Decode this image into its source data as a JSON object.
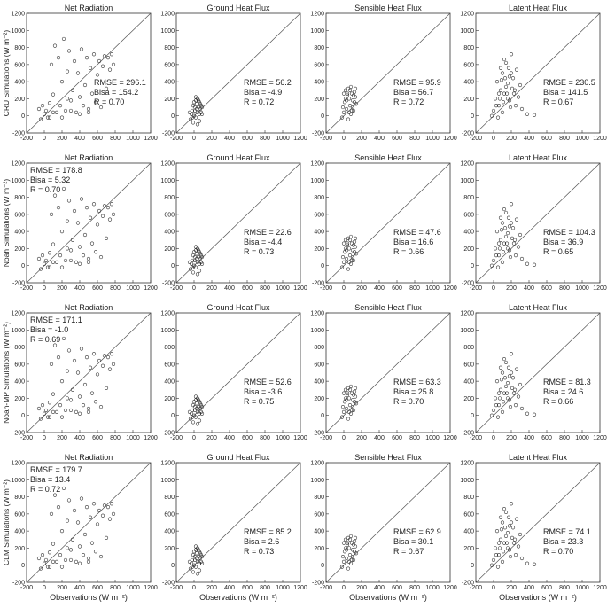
{
  "chart_data": {
    "type": "scatter",
    "axes": {
      "x_ticks": [
        -200,
        0,
        200,
        400,
        600,
        800,
        1000,
        1200
      ],
      "y_ticks": [
        -200,
        0,
        200,
        400,
        600,
        800,
        1000,
        1200
      ],
      "xlim": [
        -200,
        1200
      ],
      "ylim": [
        -200,
        1200
      ],
      "reference_line": "1:1",
      "grid": false
    },
    "xlabel": "Observations (W m⁻²)",
    "columns": [
      "Net Radiation",
      "Ground Heat Flux",
      "Sensible Heat Flux",
      "Latent Heat Flux"
    ],
    "rows": [
      {
        "ylabel": "CRU Simulations (W m⁻²)",
        "panels": [
          {
            "variable": "net",
            "stats": {
              "rmse": "RMSE = 296.1",
              "bias": "Bisa = 154.2",
              "r": "R = 0.70"
            },
            "stats_position": "bottom-right"
          },
          {
            "variable": "ground",
            "stats": {
              "rmse": "RMSE = 56.2",
              "bias": "Bisa = -4.9",
              "r": "R = 0.72"
            },
            "stats_position": "bottom-right"
          },
          {
            "variable": "sensible",
            "stats": {
              "rmse": "RMSE = 95.9",
              "bias": "Bisa = 56.7",
              "r": "R = 0.72"
            },
            "stats_position": "bottom-right"
          },
          {
            "variable": "latent",
            "stats": {
              "rmse": "RMSE = 230.5",
              "bias": "Bisa = 141.5",
              "r": "R = 0.67"
            },
            "stats_position": "bottom-right"
          }
        ]
      },
      {
        "ylabel": "Noah Simulations (W m⁻²)",
        "panels": [
          {
            "variable": "net",
            "stats": {
              "rmse": "RMSE = 178.8",
              "bias": "Bisa = 5.32",
              "r": "R = 0.70"
            },
            "stats_position": "top-left"
          },
          {
            "variable": "ground",
            "stats": {
              "rmse": "RMSE = 22.6",
              "bias": "Bisa = -4.4",
              "r": "R = 0.73"
            },
            "stats_position": "bottom-right"
          },
          {
            "variable": "sensible",
            "stats": {
              "rmse": "RMSE = 47.6",
              "bias": "Bisa = 16.6",
              "r": "R = 0.66"
            },
            "stats_position": "bottom-right"
          },
          {
            "variable": "latent",
            "stats": {
              "rmse": "RMSE = 104.3",
              "bias": "Bisa = 36.9",
              "r": "R = 0.65"
            },
            "stats_position": "bottom-right"
          }
        ]
      },
      {
        "ylabel": "Noah-MP Simulations (W m⁻²)",
        "panels": [
          {
            "variable": "net",
            "stats": {
              "rmse": "RMSE = 171.1",
              "bias": "Bisa = -1.0",
              "r": "R = 0.69"
            },
            "stats_position": "top-left"
          },
          {
            "variable": "ground",
            "stats": {
              "rmse": "RMSE = 52.6",
              "bias": "Bisa = -3.6",
              "r": "R = 0.75"
            },
            "stats_position": "bottom-right"
          },
          {
            "variable": "sensible",
            "stats": {
              "rmse": "RMSE = 63.3",
              "bias": "Bisa = 25.8",
              "r": "R = 0.70"
            },
            "stats_position": "bottom-right"
          },
          {
            "variable": "latent",
            "stats": {
              "rmse": "RMSE = 81.3",
              "bias": "Bisa = 24.6",
              "r": "R = 0.66"
            },
            "stats_position": "bottom-right"
          }
        ]
      },
      {
        "ylabel": "CLM Simulations (W m⁻²)",
        "panels": [
          {
            "variable": "net",
            "stats": {
              "rmse": "RMSE = 179.7",
              "bias": "Bisa = 13.4",
              "r": "R = 0.72"
            },
            "stats_position": "top-left"
          },
          {
            "variable": "ground",
            "stats": {
              "rmse": "RMSE = 85.2",
              "bias": "Bisa = 2.6",
              "r": "R = 0.73"
            },
            "stats_position": "bottom-right"
          },
          {
            "variable": "sensible",
            "stats": {
              "rmse": "RMSE = 62.9",
              "bias": "Bisa = 30.1",
              "r": "R = 0.67"
            },
            "stats_position": "bottom-right"
          },
          {
            "variable": "latent",
            "stats": {
              "rmse": "RMSE = 74.1",
              "bias": "Bisa = 23.3",
              "r": "R = 0.70"
            },
            "stats_position": "bottom-right"
          }
        ]
      }
    ],
    "point_clouds": {
      "net": [
        [
          -60,
          80
        ],
        [
          -40,
          -40
        ],
        [
          0,
          20
        ],
        [
          20,
          60
        ],
        [
          40,
          -20
        ],
        [
          60,
          150
        ],
        [
          80,
          600
        ],
        [
          100,
          250
        ],
        [
          120,
          820
        ],
        [
          140,
          40
        ],
        [
          160,
          680
        ],
        [
          180,
          120
        ],
        [
          200,
          400
        ],
        [
          220,
          900
        ],
        [
          240,
          60
        ],
        [
          260,
          520
        ],
        [
          280,
          760
        ],
        [
          300,
          180
        ],
        [
          320,
          300
        ],
        [
          340,
          640
        ],
        [
          360,
          40
        ],
        [
          380,
          500
        ],
        [
          400,
          220
        ],
        [
          420,
          780
        ],
        [
          440,
          120
        ],
        [
          460,
          360
        ],
        [
          480,
          680
        ],
        [
          500,
          80
        ],
        [
          520,
          560
        ],
        [
          540,
          260
        ],
        [
          560,
          720
        ],
        [
          580,
          160
        ],
        [
          600,
          480
        ],
        [
          620,
          640
        ],
        [
          640,
          100
        ],
        [
          660,
          580
        ],
        [
          680,
          700
        ],
        [
          700,
          320
        ],
        [
          720,
          680
        ],
        [
          740,
          540
        ],
        [
          760,
          720
        ],
        [
          780,
          600
        ],
        [
          60,
          -20
        ],
        [
          -20,
          120
        ],
        [
          100,
          40
        ],
        [
          200,
          -20
        ],
        [
          300,
          60
        ],
        [
          400,
          20
        ],
        [
          500,
          40
        ],
        [
          260,
          200
        ]
      ],
      "ground": [
        [
          -40,
          -40
        ],
        [
          -30,
          20
        ],
        [
          -20,
          60
        ],
        [
          -10,
          -80
        ],
        [
          0,
          0
        ],
        [
          10,
          100
        ],
        [
          20,
          -20
        ],
        [
          30,
          140
        ],
        [
          40,
          40
        ],
        [
          50,
          180
        ],
        [
          60,
          -60
        ],
        [
          70,
          80
        ],
        [
          80,
          120
        ],
        [
          90,
          20
        ],
        [
          -50,
          40
        ],
        [
          0,
          160
        ],
        [
          20,
          220
        ],
        [
          40,
          -100
        ],
        [
          60,
          160
        ],
        [
          80,
          40
        ],
        [
          -20,
          -20
        ],
        [
          10,
          60
        ],
        [
          30,
          80
        ],
        [
          50,
          100
        ],
        [
          70,
          140
        ],
        [
          -10,
          120
        ],
        [
          40,
          200
        ],
        [
          60,
          20
        ],
        [
          90,
          100
        ],
        [
          20,
          180
        ]
      ],
      "sensible": [
        [
          -20,
          -20
        ],
        [
          0,
          40
        ],
        [
          10,
          160
        ],
        [
          20,
          300
        ],
        [
          30,
          80
        ],
        [
          40,
          240
        ],
        [
          50,
          -40
        ],
        [
          60,
          200
        ],
        [
          70,
          120
        ],
        [
          80,
          340
        ],
        [
          90,
          260
        ],
        [
          100,
          180
        ],
        [
          110,
          60
        ],
        [
          120,
          280
        ],
        [
          130,
          220
        ],
        [
          140,
          140
        ],
        [
          -10,
          100
        ],
        [
          20,
          200
        ],
        [
          50,
          320
        ],
        [
          80,
          20
        ],
        [
          100,
          100
        ],
        [
          40,
          260
        ],
        [
          70,
          300
        ],
        [
          110,
          240
        ],
        [
          60,
          40
        ],
        [
          30,
          180
        ],
        [
          90,
          60
        ],
        [
          130,
          320
        ],
        [
          0,
          260
        ],
        [
          120,
          160
        ]
      ],
      "latent": [
        [
          -20,
          0
        ],
        [
          0,
          60
        ],
        [
          20,
          200
        ],
        [
          40,
          400
        ],
        [
          60,
          120
        ],
        [
          80,
          300
        ],
        [
          100,
          500
        ],
        [
          120,
          260
        ],
        [
          140,
          620
        ],
        [
          160,
          380
        ],
        [
          180,
          180
        ],
        [
          200,
          720
        ],
        [
          220,
          440
        ],
        [
          240,
          300
        ],
        [
          260,
          540
        ],
        [
          280,
          220
        ],
        [
          300,
          360
        ],
        [
          50,
          -20
        ],
        [
          80,
          560
        ],
        [
          110,
          160
        ],
        [
          130,
          440
        ],
        [
          150,
          260
        ],
        [
          170,
          560
        ],
        [
          190,
          100
        ],
        [
          210,
          320
        ],
        [
          60,
          260
        ],
        [
          90,
          420
        ],
        [
          120,
          660
        ],
        [
          160,
          200
        ],
        [
          200,
          500
        ],
        [
          250,
          120
        ],
        [
          320,
          80
        ],
        [
          380,
          20
        ],
        [
          460,
          10
        ],
        [
          30,
          120
        ],
        [
          70,
          200
        ],
        [
          140,
          340
        ],
        [
          180,
          460
        ],
        [
          230,
          260
        ],
        [
          100,
          40
        ]
      ]
    }
  }
}
